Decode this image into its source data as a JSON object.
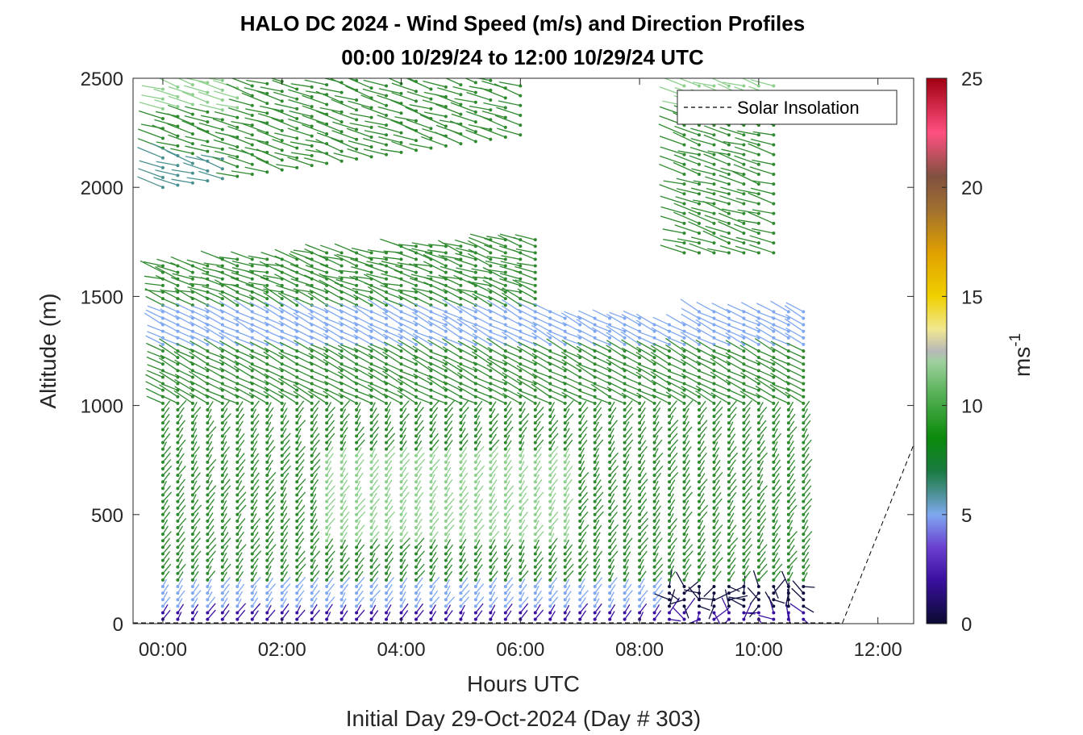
{
  "chart_data": {
    "type": "wind-barb-profile",
    "title_line1": "HALO DC 2024 - Wind Speed (m/s) and Direction Profiles",
    "title_line2": "00:00 10/29/24 to 12:00 10/29/24  UTC",
    "xlabel": "Hours UTC",
    "xlabel2": "Initial Day 29-Oct-2024 (Day # 303)",
    "ylabel": "Altitude (m)",
    "xlim_hours": [
      -0.5,
      12.6
    ],
    "ylim": [
      0,
      2500
    ],
    "x_ticks": [
      {
        "value": 0,
        "label": "00:00"
      },
      {
        "value": 2,
        "label": "02:00"
      },
      {
        "value": 4,
        "label": "04:00"
      },
      {
        "value": 6,
        "label": "06:00"
      },
      {
        "value": 8,
        "label": "08:00"
      },
      {
        "value": 10,
        "label": "10:00"
      },
      {
        "value": 12,
        "label": "12:00"
      }
    ],
    "y_ticks": [
      0,
      500,
      1000,
      1500,
      2000,
      2500
    ],
    "colorbar": {
      "label": "ms",
      "label_superscript": "-1",
      "range": [
        0,
        25
      ],
      "ticks": [
        0,
        5,
        10,
        15,
        20,
        25
      ]
    },
    "legend": {
      "entries": [
        "Solar Insolation"
      ],
      "placement": "top-right"
    },
    "solar_insolation_line": [
      [
        -0.5,
        0
      ],
      [
        11.4,
        0
      ],
      [
        12.6,
        820
      ]
    ],
    "profile_interval_hours": 0.25,
    "profile_count": 44
  },
  "colors": {
    "dark_purple": "#3a10a0",
    "blue": "#7fa8f0",
    "dark_green": "#2f8a2f",
    "light_green": "#8ecf8e",
    "navy": "#101040"
  }
}
